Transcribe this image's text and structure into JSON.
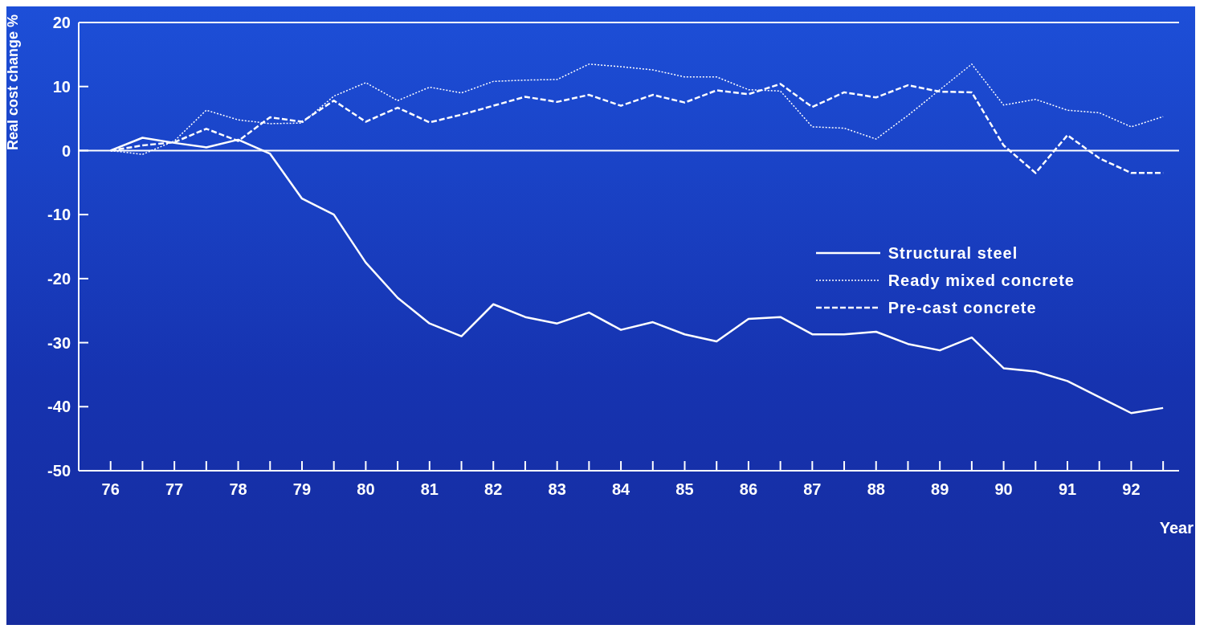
{
  "chart_data": {
    "type": "line",
    "xlabel": "Year",
    "ylabel": "Real cost change %",
    "x": [
      76,
      76.5,
      77,
      77.5,
      78,
      78.5,
      79,
      79.5,
      80,
      80.5,
      81,
      81.5,
      82,
      82.5,
      83,
      83.5,
      84,
      84.5,
      85,
      85.5,
      86,
      86.5,
      87,
      87.5,
      88,
      88.5,
      89,
      89.5,
      90,
      90.5,
      91,
      91.5,
      92,
      92.5
    ],
    "series": [
      {
        "name": "Structural steel",
        "color": "#ffffff",
        "line_style": "solid",
        "values": [
          0,
          2,
          1.2,
          0.5,
          1.7,
          -0.5,
          -7.5,
          -10,
          -17.5,
          -23,
          -27,
          -29,
          -24,
          -26,
          -27,
          -25.3,
          -28,
          -26.8,
          -28.7,
          -29.8,
          -26.3,
          -26,
          -28.7,
          -28.7,
          -28.3,
          -30.2,
          -31.2,
          -29.2,
          -34,
          -34.5,
          -36,
          -38.5,
          -41,
          -40.2
        ]
      },
      {
        "name": "Ready mixed concrete",
        "color": "#ffffff",
        "line_style": "dotted",
        "values": [
          0,
          -0.6,
          1.5,
          6.3,
          4.8,
          4.2,
          4.3,
          8.5,
          10.6,
          7.8,
          9.9,
          9,
          10.8,
          11,
          11.1,
          13.5,
          13.1,
          12.6,
          11.5,
          11.5,
          9.5,
          9.3,
          3.7,
          3.5,
          1.8,
          5.5,
          9.5,
          13.5,
          7.1,
          8,
          6.3,
          5.9,
          3.7,
          5.3
        ]
      },
      {
        "name": "Pre-cast concrete",
        "color": "#ffffff",
        "line_style": "dashed",
        "values": [
          0,
          0.8,
          1.3,
          3.4,
          1.5,
          5.2,
          4.5,
          7.8,
          4.5,
          6.7,
          4.4,
          5.6,
          7,
          8.4,
          7.6,
          8.7,
          7,
          8.7,
          7.5,
          9.4,
          8.8,
          10.4,
          6.8,
          9.1,
          8.3,
          10.2,
          9.2,
          9.1,
          0.8,
          -3.5,
          2.4,
          -1.2,
          -3.5,
          -3.5
        ]
      }
    ],
    "xlim": [
      75.5,
      92.75
    ],
    "xticks": [
      76,
      {
        "value": 76.5,
        "label": null
      },
      77,
      {
        "value": 77.5,
        "label": null
      },
      78,
      {
        "value": 78.5,
        "label": null
      },
      79,
      {
        "value": 79.5,
        "label": null
      },
      80,
      {
        "value": 80.5,
        "label": null
      },
      81,
      {
        "value": 81.5,
        "label": null
      },
      82,
      {
        "value": 82.5,
        "label": null
      },
      83,
      {
        "value": 83.5,
        "label": null
      },
      84,
      {
        "value": 84.5,
        "label": null
      },
      85,
      {
        "value": 85.5,
        "label": null
      },
      86,
      {
        "value": 86.5,
        "label": null
      },
      87,
      {
        "value": 87.5,
        "label": null
      },
      88,
      {
        "value": 88.5,
        "label": null
      },
      89,
      {
        "value": 89.5,
        "label": null
      },
      90,
      {
        "value": 90.5,
        "label": null
      },
      91,
      {
        "value": 91.5,
        "label": null
      },
      92,
      {
        "value": 92.5,
        "label": null
      }
    ],
    "ylim": [
      -50,
      20
    ],
    "yticks": [
      -50,
      -40,
      -30,
      -20,
      -10,
      0,
      10,
      20
    ],
    "ref_lines": [
      {
        "axis": "y",
        "value": 0,
        "label": null,
        "color": "#ffffff"
      }
    ],
    "grid": false,
    "legend": "right",
    "marker": "none"
  }
}
